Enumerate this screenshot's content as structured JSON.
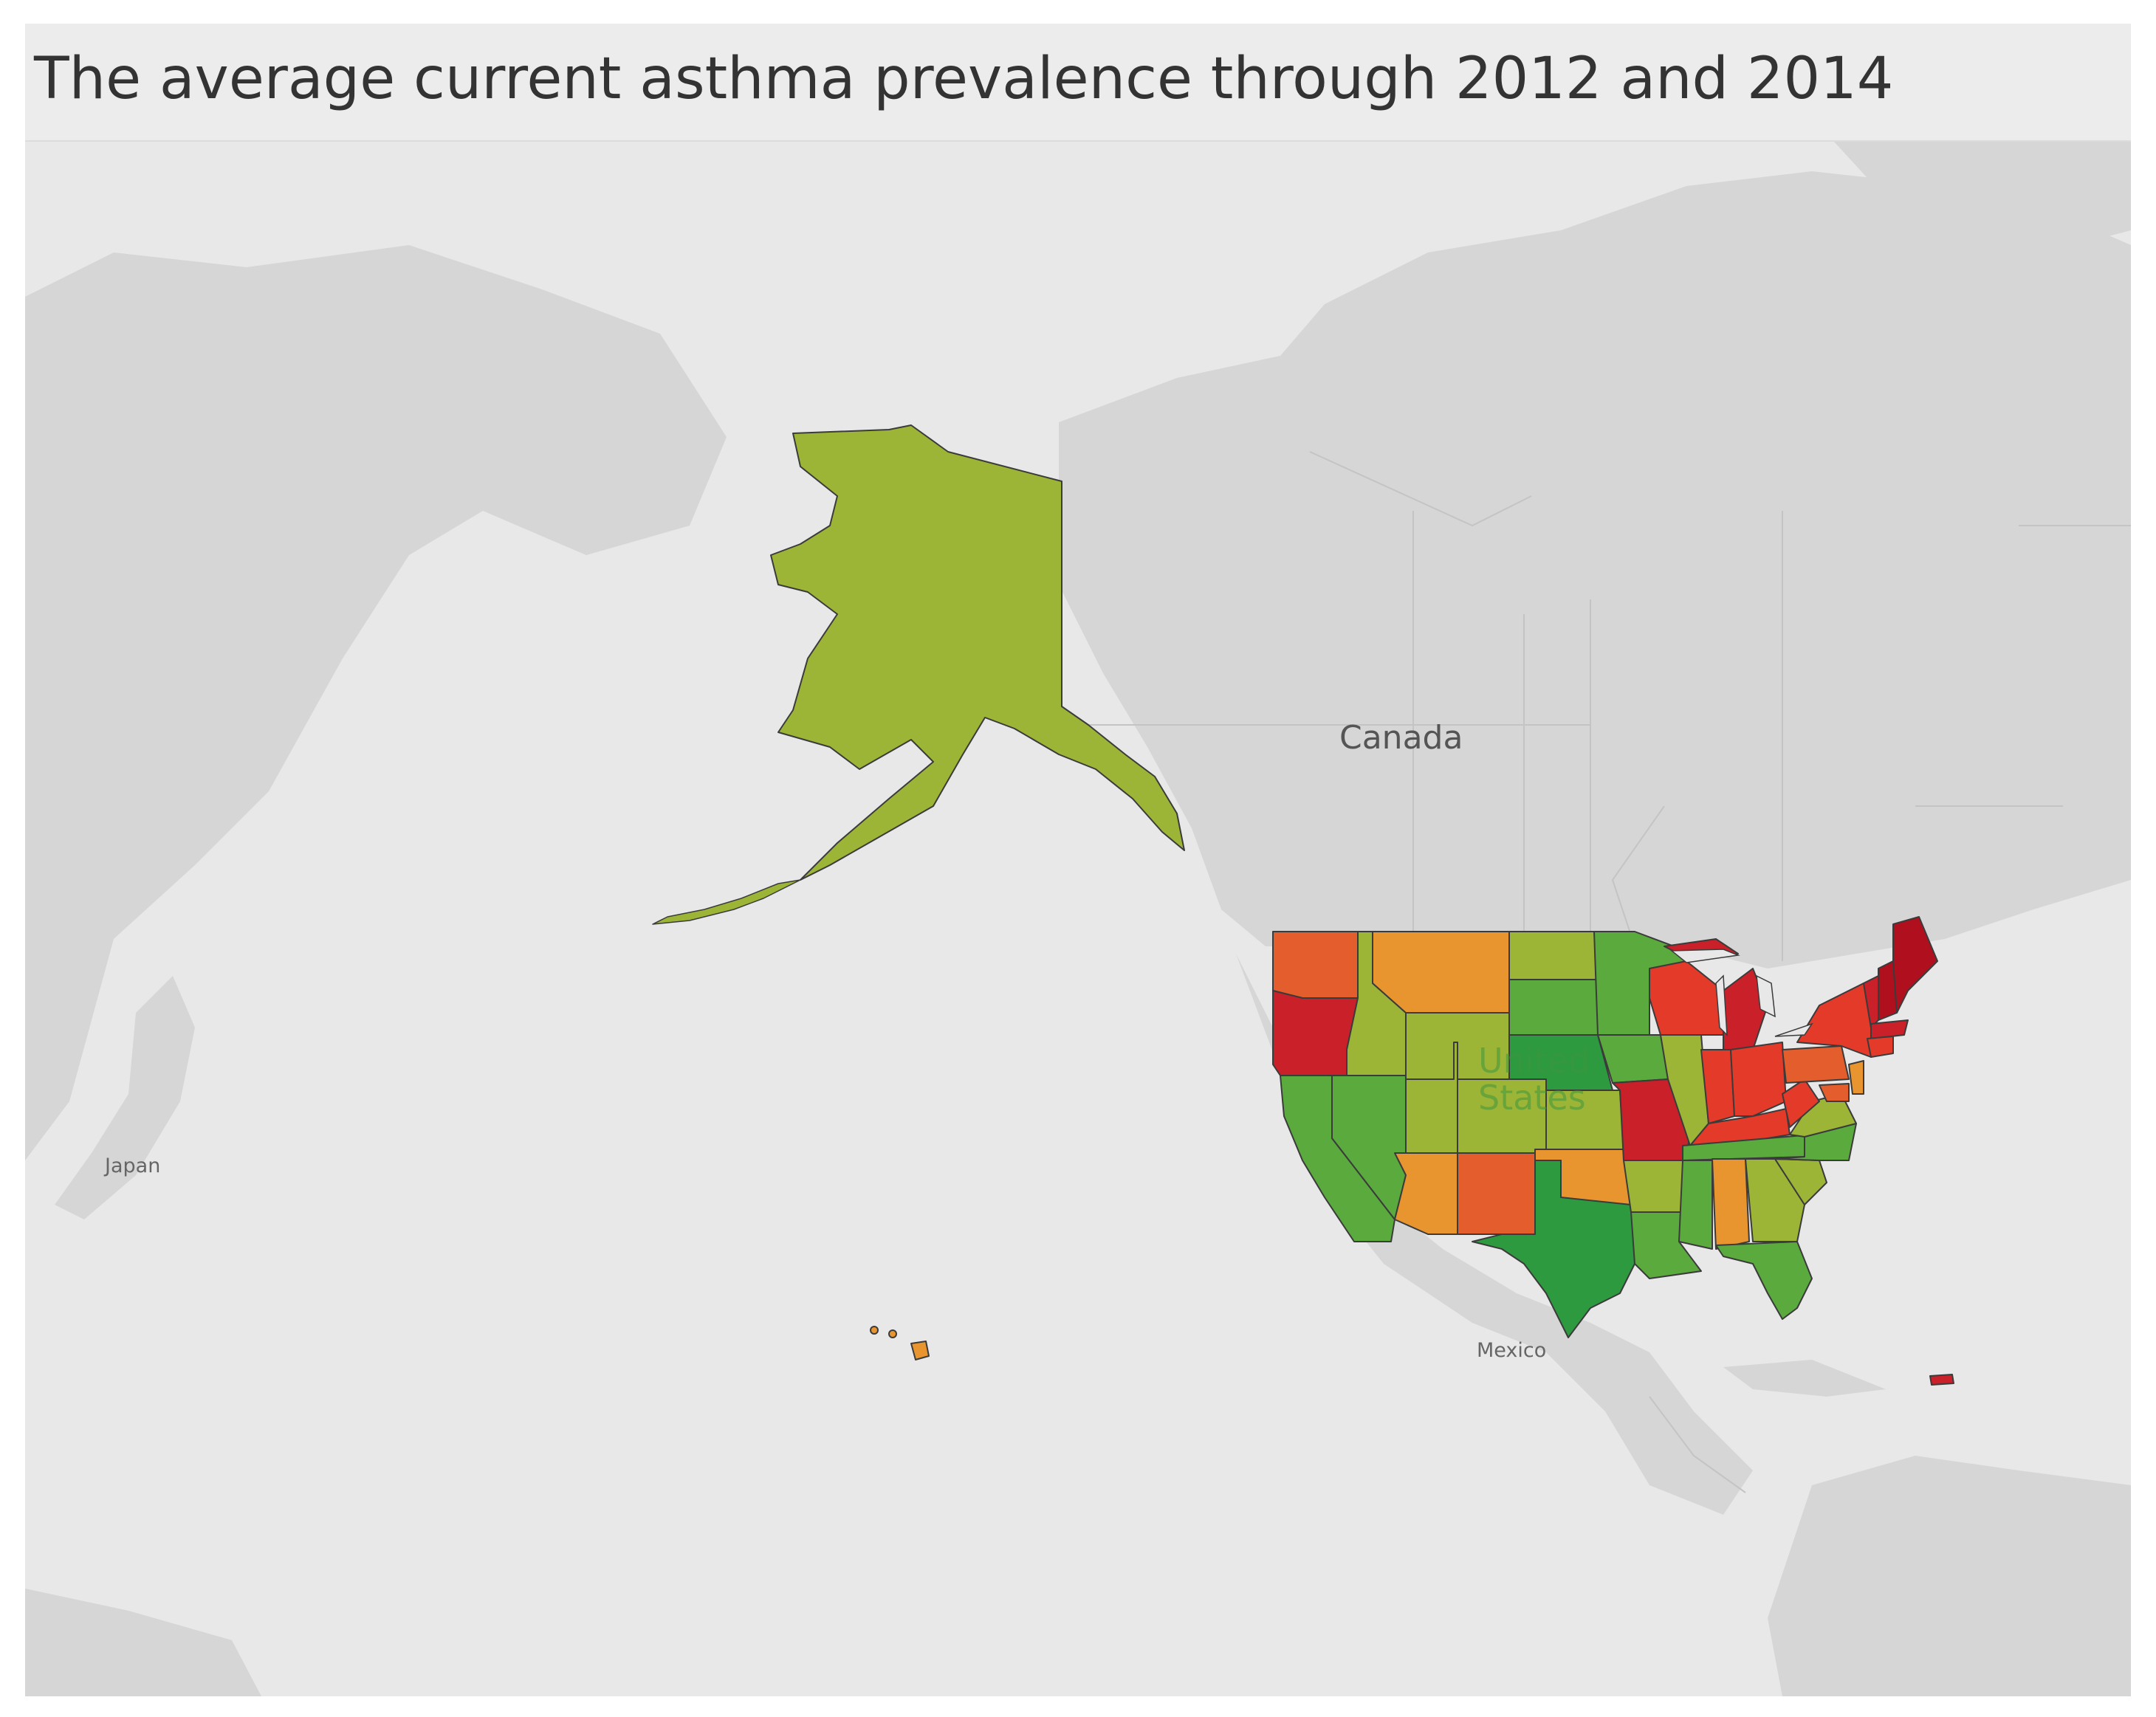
{
  "title": "The average current asthma prevalence through 2012 and 2014",
  "map": {
    "basemap_labels": {
      "canada": "Canada",
      "mexico": "Mexico",
      "japan": "Japan",
      "united_states_line1": "United",
      "united_states_line2": "States"
    },
    "color_scale": {
      "low": "#2e9a40",
      "mid_low": "#9db537",
      "mid_high": "#e9952f",
      "high": "#c9202a"
    },
    "land_color": "#d6d6d6",
    "water_color": "#e8e8e8"
  }
}
